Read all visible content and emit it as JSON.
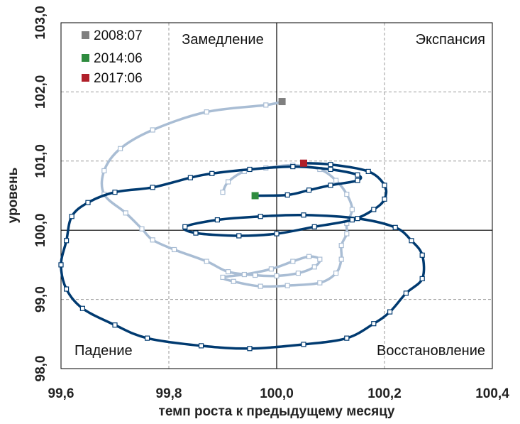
{
  "chart_data": {
    "type": "line",
    "xlabel": "темп роста к предыдущему месяцу",
    "ylabel": "уровень",
    "xlim": [
      99.6,
      100.4
    ],
    "ylim": [
      98.0,
      103.0
    ],
    "x_ticks": [
      99.6,
      99.8,
      100.0,
      100.2,
      100.4
    ],
    "x_tick_labels": [
      "99,6",
      "99,8",
      "100,0",
      "100,2",
      "100,4"
    ],
    "y_ticks": [
      98.0,
      99.0,
      100.0,
      101.0,
      102.0,
      103.0
    ],
    "y_tick_labels": [
      "98,0",
      "99,0",
      "100,0",
      "101,0",
      "102,0",
      "103,0"
    ],
    "grid": "dashed",
    "reference_lines": {
      "x": 100.0,
      "y": 100.0
    },
    "quadrant_labels": {
      "top_left": "Замедление",
      "top_right": "Экспансия",
      "bottom_left": "Падение",
      "bottom_right": "Восстановление"
    },
    "legend": {
      "placement": "top-left",
      "entries": [
        {
          "label": "2008:07",
          "color": "#7f7f7f"
        },
        {
          "label": "2014:06",
          "color": "#2e8b3e"
        },
        {
          "label": "2017:06",
          "color": "#b0202a"
        }
      ]
    },
    "colors": {
      "series_2008": "#a9bdd4",
      "series_2014": "#003a70",
      "grid": "#999999",
      "axis": "#000000"
    },
    "series": [
      {
        "line_color": "#a9bdd4",
        "marker_start": "2008:07",
        "points": [
          [
            100.01,
            101.86
          ],
          [
            99.98,
            101.81
          ],
          [
            99.87,
            101.71
          ],
          [
            99.77,
            101.45
          ],
          [
            99.71,
            101.18
          ],
          [
            99.68,
            100.86
          ],
          [
            99.68,
            100.52
          ],
          [
            99.72,
            100.25
          ],
          [
            99.75,
            100.02
          ],
          [
            99.77,
            99.86
          ],
          [
            99.81,
            99.72
          ],
          [
            99.87,
            99.55
          ],
          [
            99.91,
            99.4
          ],
          [
            99.96,
            99.35
          ],
          [
            100.0,
            99.34
          ],
          [
            100.04,
            99.38
          ],
          [
            100.07,
            99.47
          ],
          [
            100.08,
            99.58
          ],
          [
            100.06,
            99.62
          ],
          [
            100.03,
            99.55
          ],
          [
            99.99,
            99.44
          ],
          [
            99.94,
            99.36
          ],
          [
            99.9,
            99.32
          ],
          [
            99.92,
            99.26
          ],
          [
            99.97,
            99.19
          ],
          [
            100.02,
            99.2
          ],
          [
            100.08,
            99.24
          ],
          [
            100.11,
            99.38
          ],
          [
            100.12,
            99.58
          ],
          [
            100.12,
            99.78
          ],
          [
            100.13,
            99.95
          ],
          [
            100.13,
            100.1
          ],
          [
            100.14,
            100.3
          ],
          [
            100.13,
            100.52
          ],
          [
            100.11,
            100.72
          ],
          [
            100.08,
            100.88
          ],
          [
            100.03,
            100.94
          ],
          [
            99.98,
            100.9
          ],
          [
            99.94,
            100.85
          ],
          [
            99.91,
            100.7
          ],
          [
            99.9,
            100.55
          ]
        ]
      },
      {
        "line_color": "#003a70",
        "marker_start": "2014:06",
        "marker_end": "2017:06",
        "points": [
          [
            99.96,
            100.5
          ],
          [
            100.02,
            100.51
          ],
          [
            100.06,
            100.58
          ],
          [
            100.1,
            100.65
          ],
          [
            100.15,
            100.72
          ],
          [
            100.15,
            100.8
          ],
          [
            100.1,
            100.88
          ],
          [
            100.03,
            100.92
          ],
          [
            99.95,
            100.88
          ],
          [
            99.88,
            100.82
          ],
          [
            99.84,
            100.76
          ],
          [
            99.77,
            100.62
          ],
          [
            99.7,
            100.55
          ],
          [
            99.65,
            100.4
          ],
          [
            99.62,
            100.2
          ],
          [
            99.61,
            99.85
          ],
          [
            99.6,
            99.5
          ],
          [
            99.61,
            99.15
          ],
          [
            99.64,
            98.87
          ],
          [
            99.7,
            98.63
          ],
          [
            99.76,
            98.44
          ],
          [
            99.86,
            98.33
          ],
          [
            99.95,
            98.29
          ],
          [
            100.05,
            98.35
          ],
          [
            100.13,
            98.44
          ],
          [
            100.18,
            98.65
          ],
          [
            100.21,
            98.82
          ],
          [
            100.24,
            99.09
          ],
          [
            100.27,
            99.3
          ],
          [
            100.27,
            99.64
          ],
          [
            100.25,
            99.85
          ],
          [
            100.22,
            100.04
          ],
          [
            100.15,
            100.17
          ],
          [
            100.05,
            100.22
          ],
          [
            99.97,
            100.2
          ],
          [
            99.89,
            100.15
          ],
          [
            99.83,
            100.05
          ],
          [
            99.85,
            99.96
          ],
          [
            99.93,
            99.92
          ],
          [
            100.0,
            99.95
          ],
          [
            100.07,
            100.05
          ],
          [
            100.14,
            100.15
          ],
          [
            100.18,
            100.3
          ],
          [
            100.2,
            100.45
          ],
          [
            100.2,
            100.65
          ],
          [
            100.17,
            100.85
          ],
          [
            100.1,
            100.95
          ],
          [
            100.05,
            100.97
          ]
        ]
      }
    ]
  }
}
